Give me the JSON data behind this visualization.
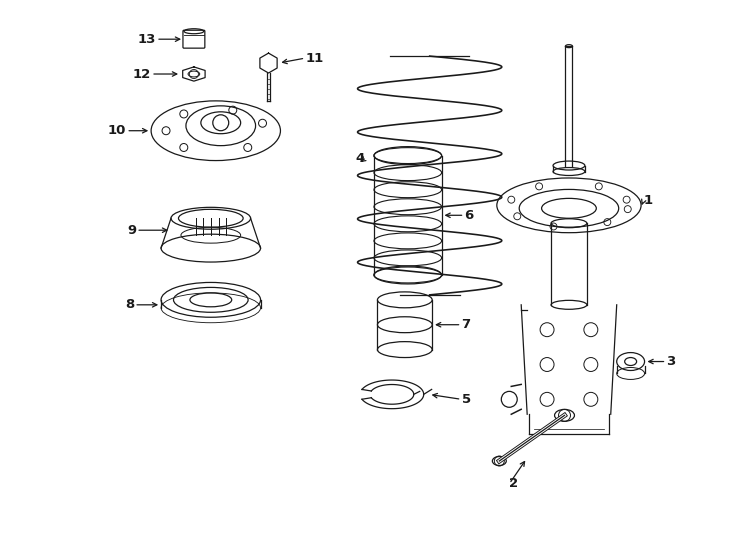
{
  "background_color": "#ffffff",
  "line_color": "#1a1a1a",
  "fig_width": 7.34,
  "fig_height": 5.4,
  "dpi": 100,
  "font_size": 9.5,
  "lw": 0.9
}
